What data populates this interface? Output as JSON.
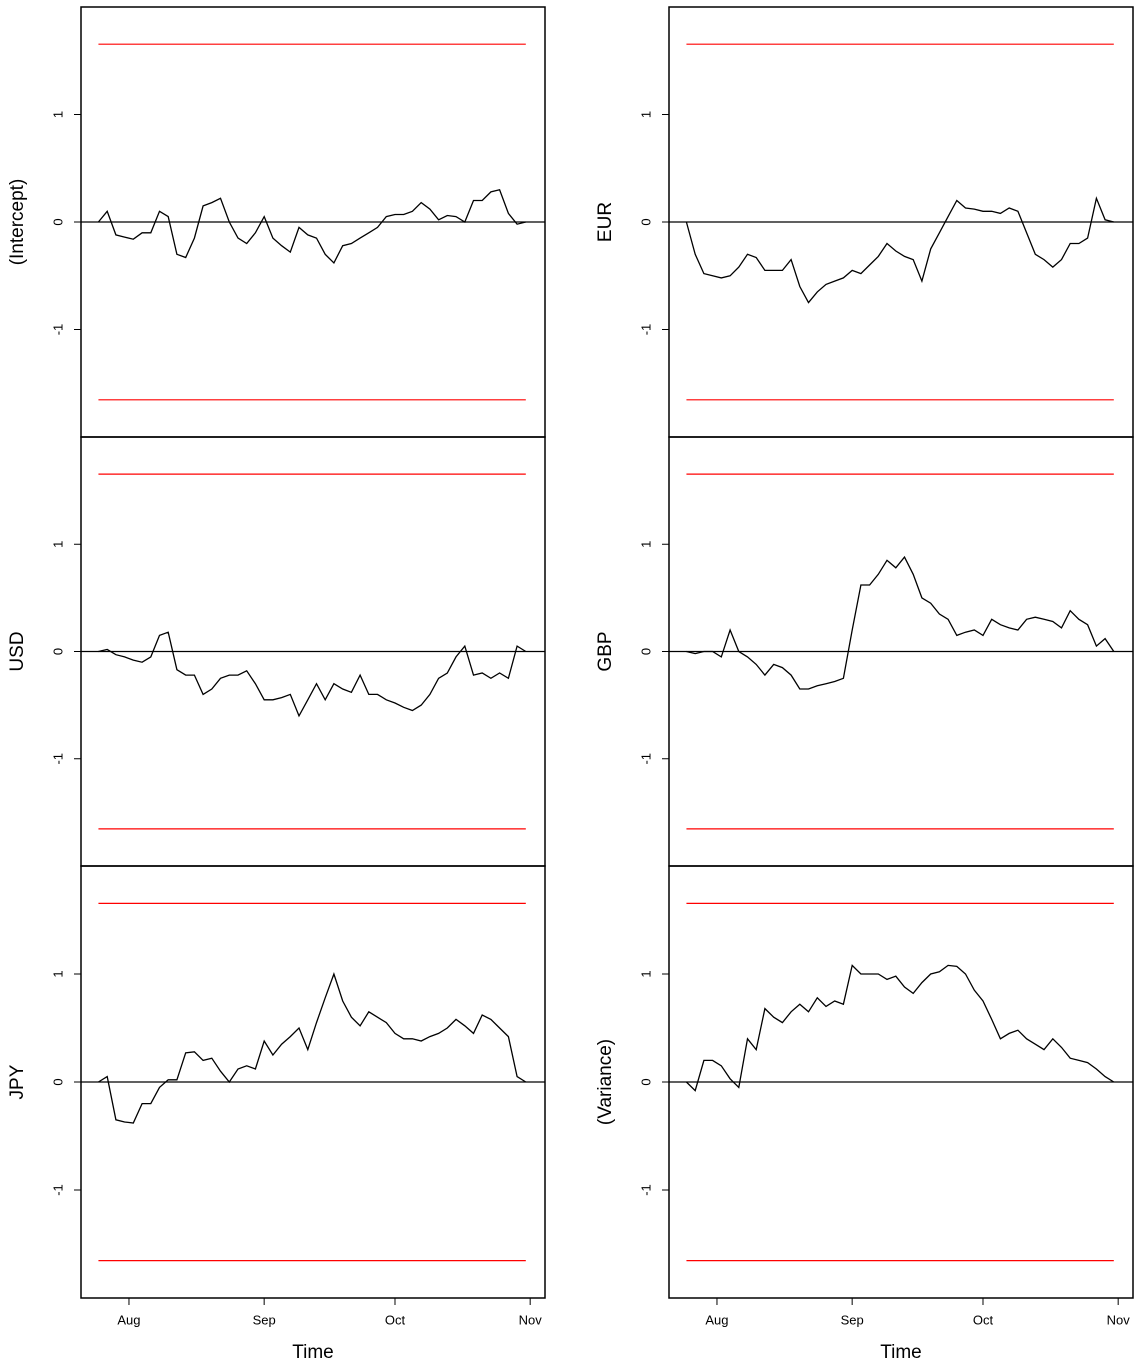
{
  "chart_data": [
    {
      "type": "line",
      "y_label": "(Intercept)",
      "xlim": [
        -11,
        95.4
      ],
      "ylim": [
        -2,
        2
      ],
      "yticks": [
        -1,
        0,
        1
      ],
      "reference_line": 0,
      "boundaries": [
        -1.654,
        1.654
      ],
      "boundary_color": "#ff0000",
      "color": "#000000",
      "x": [
        -7,
        -5,
        -3,
        -1,
        1,
        3,
        5,
        7,
        9,
        11,
        13,
        15,
        17,
        19,
        21,
        23,
        25,
        27,
        29,
        31,
        33,
        35,
        37,
        39,
        41,
        43,
        45,
        47,
        49,
        51,
        53,
        55,
        57,
        59,
        61,
        63,
        65,
        67,
        69,
        71,
        73,
        75,
        77,
        79,
        81,
        83,
        85,
        87,
        89,
        91
      ],
      "values": [
        0,
        0.1,
        -0.12,
        -0.14,
        -0.16,
        -0.1,
        -0.1,
        0.1,
        0.05,
        -0.3,
        -0.33,
        -0.15,
        0.15,
        0.18,
        0.22,
        0,
        -0.15,
        -0.2,
        -0.1,
        0.05,
        -0.15,
        -0.22,
        -0.28,
        -0.05,
        -0.12,
        -0.15,
        -0.3,
        -0.38,
        -0.22,
        -0.2,
        -0.15,
        -0.1,
        -0.05,
        0.05,
        0.07,
        0.07,
        0.1,
        0.18,
        0.12,
        0.02,
        0.06,
        0.05,
        0,
        0.2,
        0.2,
        0.28,
        0.3,
        0.08,
        -0.02,
        0
      ]
    },
    {
      "type": "line",
      "y_label": "EUR",
      "xlim": [
        -11,
        95.4
      ],
      "ylim": [
        -2,
        2
      ],
      "yticks": [
        -1,
        0,
        1
      ],
      "reference_line": 0,
      "boundaries": [
        -1.654,
        1.654
      ],
      "boundary_color": "#ff0000",
      "color": "#000000",
      "x": [
        -7,
        -5,
        -3,
        -1,
        1,
        3,
        5,
        7,
        9,
        11,
        13,
        15,
        17,
        19,
        21,
        23,
        25,
        27,
        29,
        31,
        33,
        35,
        37,
        39,
        41,
        43,
        45,
        47,
        49,
        51,
        53,
        55,
        57,
        59,
        61,
        63,
        65,
        67,
        69,
        71,
        73,
        75,
        77,
        79,
        81,
        83,
        85,
        87,
        89,
        91
      ],
      "values": [
        0,
        -0.3,
        -0.48,
        -0.5,
        -0.52,
        -0.5,
        -0.42,
        -0.3,
        -0.33,
        -0.45,
        -0.45,
        -0.45,
        -0.35,
        -0.6,
        -0.75,
        -0.65,
        -0.58,
        -0.55,
        -0.52,
        -0.45,
        -0.48,
        -0.4,
        -0.32,
        -0.2,
        -0.27,
        -0.32,
        -0.35,
        -0.55,
        -0.25,
        -0.1,
        0.05,
        0.2,
        0.13,
        0.12,
        0.1,
        0.1,
        0.08,
        0.13,
        0.1,
        -0.1,
        -0.3,
        -0.35,
        -0.42,
        -0.35,
        -0.2,
        -0.2,
        -0.15,
        0.22,
        0.02,
        0
      ]
    },
    {
      "type": "line",
      "y_label": "USD",
      "xlim": [
        -11,
        95.4
      ],
      "ylim": [
        -2,
        2
      ],
      "yticks": [
        -1,
        0,
        1
      ],
      "reference_line": 0,
      "boundaries": [
        -1.654,
        1.654
      ],
      "boundary_color": "#ff0000",
      "color": "#000000",
      "x": [
        -7,
        -5,
        -3,
        -1,
        1,
        3,
        5,
        7,
        9,
        11,
        13,
        15,
        17,
        19,
        21,
        23,
        25,
        27,
        29,
        31,
        33,
        35,
        37,
        39,
        41,
        43,
        45,
        47,
        49,
        51,
        53,
        55,
        57,
        59,
        61,
        63,
        65,
        67,
        69,
        71,
        73,
        75,
        77,
        79,
        81,
        83,
        85,
        87,
        89,
        91
      ],
      "values": [
        0,
        0.02,
        -0.03,
        -0.05,
        -0.08,
        -0.1,
        -0.05,
        0.15,
        0.18,
        -0.17,
        -0.22,
        -0.22,
        -0.4,
        -0.35,
        -0.25,
        -0.22,
        -0.22,
        -0.18,
        -0.3,
        -0.45,
        -0.45,
        -0.43,
        -0.4,
        -0.6,
        -0.45,
        -0.3,
        -0.45,
        -0.3,
        -0.35,
        -0.38,
        -0.22,
        -0.4,
        -0.4,
        -0.45,
        -0.48,
        -0.52,
        -0.55,
        -0.5,
        -0.4,
        -0.25,
        -0.2,
        -0.05,
        0.05,
        -0.22,
        -0.2,
        -0.25,
        -0.2,
        -0.25,
        0.05,
        0
      ]
    },
    {
      "type": "line",
      "y_label": "GBP",
      "xlim": [
        -11,
        95.4
      ],
      "ylim": [
        -2,
        2
      ],
      "yticks": [
        -1,
        0,
        1
      ],
      "reference_line": 0,
      "boundaries": [
        -1.654,
        1.654
      ],
      "boundary_color": "#ff0000",
      "color": "#000000",
      "x": [
        -7,
        -5,
        -3,
        -1,
        1,
        3,
        5,
        7,
        9,
        11,
        13,
        15,
        17,
        19,
        21,
        23,
        25,
        27,
        29,
        31,
        33,
        35,
        37,
        39,
        41,
        43,
        45,
        47,
        49,
        51,
        53,
        55,
        57,
        59,
        61,
        63,
        65,
        67,
        69,
        71,
        73,
        75,
        77,
        79,
        81,
        83,
        85,
        87,
        89,
        91
      ],
      "values": [
        0,
        -0.02,
        0,
        0,
        -0.05,
        0.2,
        0,
        -0.05,
        -0.12,
        -0.22,
        -0.12,
        -0.15,
        -0.22,
        -0.35,
        -0.35,
        -0.32,
        -0.3,
        -0.28,
        -0.25,
        0.2,
        0.62,
        0.62,
        0.72,
        0.85,
        0.78,
        0.88,
        0.72,
        0.5,
        0.45,
        0.35,
        0.3,
        0.15,
        0.18,
        0.2,
        0.15,
        0.3,
        0.25,
        0.22,
        0.2,
        0.3,
        0.32,
        0.3,
        0.28,
        0.22,
        0.38,
        0.3,
        0.25,
        0.05,
        0.12,
        0
      ]
    },
    {
      "type": "line",
      "y_label": "JPY",
      "x_label": "Time",
      "xlim": [
        -11,
        95.4
      ],
      "ylim": [
        -2,
        2
      ],
      "yticks": [
        -1,
        0,
        1
      ],
      "xticks": [
        {
          "value": 0,
          "label": "Aug"
        },
        {
          "value": 31,
          "label": "Sep"
        },
        {
          "value": 61,
          "label": "Oct"
        },
        {
          "value": 92,
          "label": "Nov"
        }
      ],
      "reference_line": 0,
      "boundaries": [
        -1.654,
        1.654
      ],
      "boundary_color": "#ff0000",
      "color": "#000000",
      "x": [
        -7,
        -5,
        -3,
        -1,
        1,
        3,
        5,
        7,
        9,
        11,
        13,
        15,
        17,
        19,
        21,
        23,
        25,
        27,
        29,
        31,
        33,
        35,
        37,
        39,
        41,
        43,
        45,
        47,
        49,
        51,
        53,
        55,
        57,
        59,
        61,
        63,
        65,
        67,
        69,
        71,
        73,
        75,
        77,
        79,
        81,
        83,
        85,
        87,
        89,
        91
      ],
      "values": [
        0,
        0.05,
        -0.35,
        -0.37,
        -0.38,
        -0.2,
        -0.2,
        -0.05,
        0.02,
        0.02,
        0.27,
        0.28,
        0.2,
        0.22,
        0.1,
        0,
        0.12,
        0.15,
        0.12,
        0.38,
        0.25,
        0.35,
        0.42,
        0.5,
        0.3,
        0.55,
        0.78,
        1,
        0.75,
        0.6,
        0.52,
        0.65,
        0.6,
        0.55,
        0.45,
        0.4,
        0.4,
        0.38,
        0.42,
        0.45,
        0.5,
        0.58,
        0.52,
        0.45,
        0.62,
        0.58,
        0.5,
        0.42,
        0.05,
        0
      ]
    },
    {
      "type": "line",
      "y_label": "(Variance)",
      "x_label": "Time",
      "xlim": [
        -11,
        95.4
      ],
      "ylim": [
        -2,
        2
      ],
      "yticks": [
        -1,
        0,
        1
      ],
      "xticks": [
        {
          "value": 0,
          "label": "Aug"
        },
        {
          "value": 31,
          "label": "Sep"
        },
        {
          "value": 61,
          "label": "Oct"
        },
        {
          "value": 92,
          "label": "Nov"
        }
      ],
      "reference_line": 0,
      "boundaries": [
        -1.654,
        1.654
      ],
      "boundary_color": "#ff0000",
      "color": "#000000",
      "x": [
        -7,
        -5,
        -3,
        -1,
        1,
        3,
        5,
        7,
        9,
        11,
        13,
        15,
        17,
        19,
        21,
        23,
        25,
        27,
        29,
        31,
        33,
        35,
        37,
        39,
        41,
        43,
        45,
        47,
        49,
        51,
        53,
        55,
        57,
        59,
        61,
        63,
        65,
        67,
        69,
        71,
        73,
        75,
        77,
        79,
        81,
        83,
        85,
        87,
        89,
        91
      ],
      "values": [
        0,
        -0.08,
        0.2,
        0.2,
        0.15,
        0.03,
        -0.05,
        0.4,
        0.3,
        0.68,
        0.6,
        0.55,
        0.65,
        0.72,
        0.65,
        0.78,
        0.7,
        0.75,
        0.72,
        1.08,
        1,
        1,
        1,
        0.95,
        0.98,
        0.88,
        0.82,
        0.92,
        1,
        1.02,
        1.08,
        1.07,
        1,
        0.85,
        0.75,
        0.58,
        0.4,
        0.45,
        0.48,
        0.4,
        0.35,
        0.3,
        0.4,
        0.32,
        0.22,
        0.2,
        0.18,
        0.12,
        0.05,
        0
      ]
    }
  ]
}
